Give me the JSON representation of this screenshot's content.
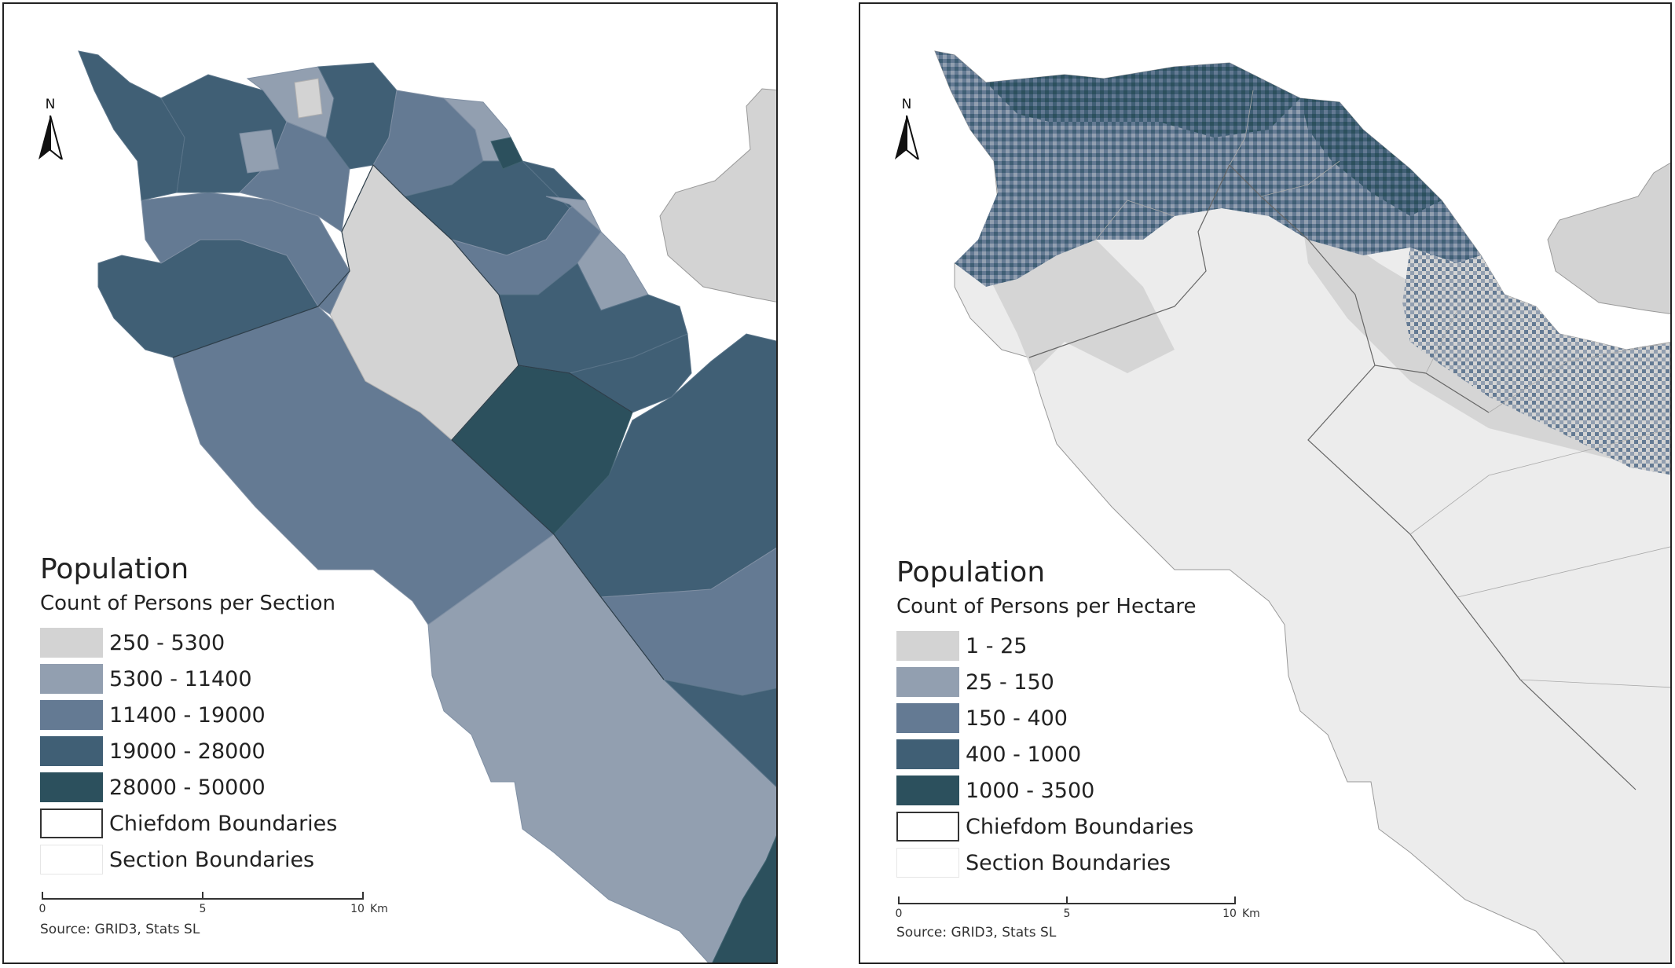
{
  "colors": {
    "c1": "#d3d3d3",
    "c2": "#929fb0",
    "c3": "#647a93",
    "c4": "#405f75",
    "c5": "#2c505d",
    "hectare_bg": "#ececec",
    "neighbor": "#d3d3d3"
  },
  "left_map": {
    "legend": {
      "title": "Population",
      "subtitle": "Count of Persons per Section",
      "classes": [
        {
          "label": "250 - 5300",
          "color": "#d3d3d3"
        },
        {
          "label": "5300 - 11400",
          "color": "#929fb0"
        },
        {
          "label": "11400 - 19000",
          "color": "#647a93"
        },
        {
          "label": "19000 - 28000",
          "color": "#405f75"
        },
        {
          "label": "28000 - 50000",
          "color": "#2c505d"
        }
      ],
      "boundaries": [
        {
          "label": "Chiefdom Boundaries",
          "style": "chiefdom"
        },
        {
          "label": "Section Boundaries",
          "style": "section"
        }
      ]
    },
    "north_label": "N",
    "north_icon": "north-arrow-icon",
    "scale": {
      "ticks": [
        "0",
        "5",
        "10"
      ],
      "unit": "Km"
    },
    "source": "Source: GRID3, Stats SL"
  },
  "right_map": {
    "legend": {
      "title": "Population",
      "subtitle": "Count of Persons per Hectare",
      "classes": [
        {
          "label": "1 - 25",
          "color": "#d3d3d3"
        },
        {
          "label": "25 - 150",
          "color": "#929fb0"
        },
        {
          "label": "150 - 400",
          "color": "#647a93"
        },
        {
          "label": "400 - 1000",
          "color": "#405f75"
        },
        {
          "label": "1000 - 3500",
          "color": "#2c505d"
        }
      ],
      "boundaries": [
        {
          "label": "Chiefdom Boundaries",
          "style": "chiefdom"
        },
        {
          "label": "Section Boundaries",
          "style": "section"
        }
      ]
    },
    "north_label": "N",
    "north_icon": "north-arrow-icon",
    "scale": {
      "ticks": [
        "0",
        "5",
        "10"
      ],
      "unit": "Km"
    },
    "source": "Source: GRID3, Stats SL"
  }
}
